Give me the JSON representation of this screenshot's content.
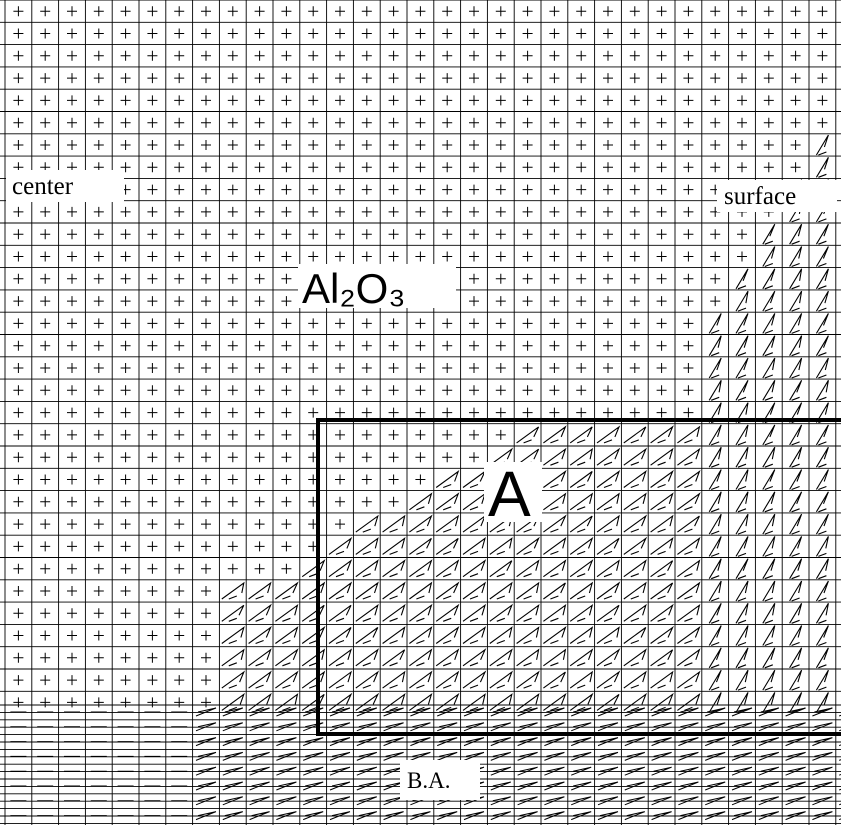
{
  "labels": {
    "center": "center",
    "surface": "surface",
    "material": "Al₂O₃",
    "region_a": "A",
    "region_ba": "B.A."
  }
}
